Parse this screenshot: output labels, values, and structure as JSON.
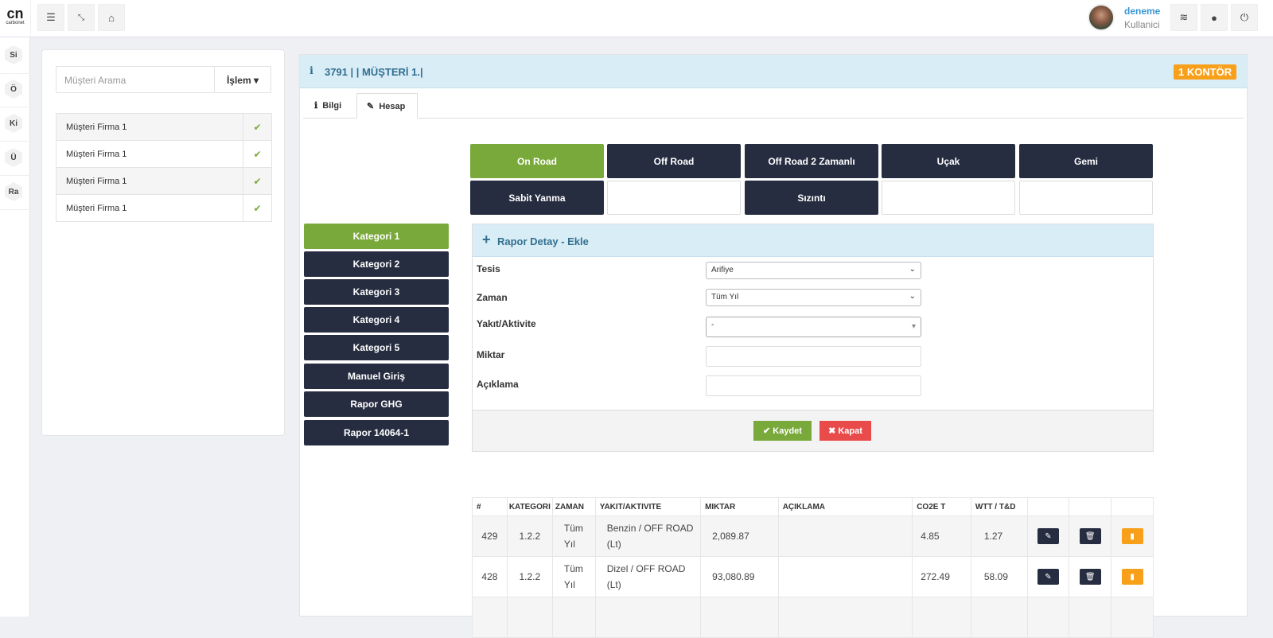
{
  "app": {
    "logo": "cn",
    "logo_sub": "carbonet"
  },
  "topbar": {
    "user_name": "deneme",
    "user_role": "Kullanici",
    "icons": [
      "menu-icon",
      "compress-icon",
      "home-icon",
      "layers-icon",
      "globe-icon",
      "power-icon"
    ]
  },
  "rail": [
    "Si",
    "Ö",
    "Ki",
    "Ü",
    "Ra"
  ],
  "left": {
    "search_placeholder": "Müşteri Arama",
    "action_label": "İşlem ▾",
    "customers": [
      "Müşteri Firma 1",
      "Müşteri Firma 1",
      "Müşteri Firma 1",
      "Müşteri Firma 1"
    ]
  },
  "main": {
    "title": "3791 | | MÜŞTERİ 1.|",
    "badge": "1 KONTÖR",
    "tabs": [
      "Bilgi",
      "Hesap"
    ],
    "vehicles": [
      "On Road",
      "Off Road",
      "Off Road 2 Zamanlı",
      "Uçak",
      "Gemi",
      "Sabit Yanma",
      "",
      "Sızıntı",
      "",
      ""
    ],
    "categories": [
      "Kategori 1",
      "Kategori 2",
      "Kategori 3",
      "Kategori 4",
      "Kategori 5",
      "Manuel Giriş",
      "Rapor GHG",
      "Rapor 14064-1"
    ],
    "form": {
      "title": "Rapor Detay - Ekle",
      "labels": {
        "tesis": "Tesis",
        "zaman": "Zaman",
        "yakit": "Yakıt/Aktivite",
        "miktar": "Miktar",
        "aciklama": "Açıklama"
      },
      "values": {
        "tesis": "Arifiye",
        "zaman": "Tüm Yıl",
        "yakit": "-",
        "miktar": "",
        "aciklama": ""
      },
      "save": "✔ Kaydet",
      "close": "✖ Kapat"
    },
    "table": {
      "headers": [
        "#",
        "KATEGORI",
        "ZAMAN",
        "YAKIT/AKTIVITE",
        "MIKTAR",
        "AÇIKLAMA",
        "CO2E T",
        "WTT / T&D",
        "",
        "",
        ""
      ],
      "rows": [
        {
          "id": "429",
          "kategori": "1.2.2",
          "zaman": "Tüm Yıl",
          "yakit": "Benzin / OFF ROAD (Lt)",
          "miktar": "2,089.87",
          "aciklama": "",
          "co2e": "4.85",
          "wtt": "1.27"
        },
        {
          "id": "428",
          "kategori": "1.2.2",
          "zaman": "Tüm Yıl",
          "yakit": "Dizel / OFF ROAD (Lt)",
          "miktar": "93,080.89",
          "aciklama": "",
          "co2e": "272.49",
          "wtt": "58.09"
        }
      ]
    }
  },
  "colors": {
    "accent_green": "#79a93a",
    "dark_button": "#262d40",
    "header_blue": "#d9edf7",
    "badge_orange": "#f9a01b",
    "danger": "#e94b4b"
  }
}
